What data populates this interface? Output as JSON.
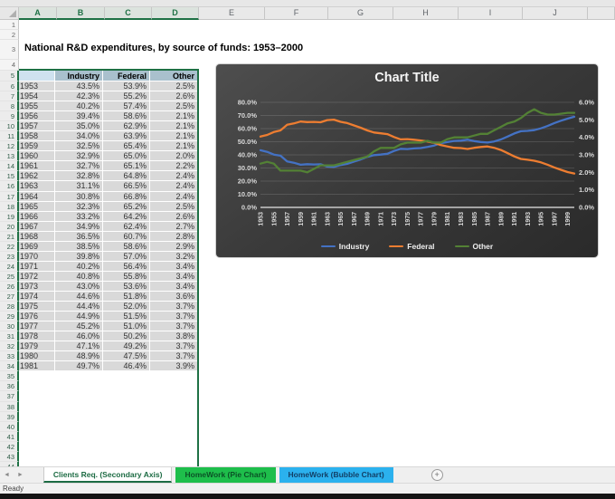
{
  "app": {
    "status": "Ready"
  },
  "icons": {
    "tab_nav_left": "◄",
    "tab_nav_right": "►",
    "add_sheet": "+",
    "select_all_corner": "triangle"
  },
  "colors": {
    "accent_green": "#1F7145",
    "table_header_bg": "#A9C0CD",
    "table_corner_bg": "#CFE2EF",
    "cell_bg": "#D9D9D9",
    "series_industry": "#4472C4",
    "series_federal": "#ED7D31",
    "series_other": "#538135"
  },
  "grid": {
    "columns": [
      {
        "label": "A",
        "width": 42,
        "selected": true
      },
      {
        "label": "B",
        "width": 53,
        "selected": true
      },
      {
        "label": "C",
        "width": 52,
        "selected": true
      },
      {
        "label": "D",
        "width": 52,
        "selected": true
      },
      {
        "label": "E",
        "width": 73
      },
      {
        "label": "F",
        "width": 70
      },
      {
        "label": "G",
        "width": 72
      },
      {
        "label": "H",
        "width": 72
      },
      {
        "label": "I",
        "width": 71
      },
      {
        "label": "J",
        "width": 72
      },
      {
        "label": "",
        "width": 30
      }
    ],
    "row_count": 44,
    "selected_from_row": 5
  },
  "sheet": {
    "title_cell": "National R&D expenditures, by source of funds: 1953–2000"
  },
  "table": {
    "headers": [
      "",
      "Industry",
      "Federal",
      "Other"
    ],
    "rows": [
      [
        "1953",
        "43.5%",
        "53.9%",
        "2.5%"
      ],
      [
        "1954",
        "42.3%",
        "55.2%",
        "2.6%"
      ],
      [
        "1955",
        "40.2%",
        "57.4%",
        "2.5%"
      ],
      [
        "1956",
        "39.4%",
        "58.6%",
        "2.1%"
      ],
      [
        "1957",
        "35.0%",
        "62.9%",
        "2.1%"
      ],
      [
        "1958",
        "34.0%",
        "63.9%",
        "2.1%"
      ],
      [
        "1959",
        "32.5%",
        "65.4%",
        "2.1%"
      ],
      [
        "1960",
        "32.9%",
        "65.0%",
        "2.0%"
      ],
      [
        "1961",
        "32.7%",
        "65.1%",
        "2.2%"
      ],
      [
        "1962",
        "32.8%",
        "64.8%",
        "2.4%"
      ],
      [
        "1963",
        "31.1%",
        "66.5%",
        "2.4%"
      ],
      [
        "1964",
        "30.8%",
        "66.8%",
        "2.4%"
      ],
      [
        "1965",
        "32.3%",
        "65.2%",
        "2.5%"
      ],
      [
        "1966",
        "33.2%",
        "64.2%",
        "2.6%"
      ],
      [
        "1967",
        "34.9%",
        "62.4%",
        "2.7%"
      ],
      [
        "1968",
        "36.5%",
        "60.7%",
        "2.8%"
      ],
      [
        "1969",
        "38.5%",
        "58.6%",
        "2.9%"
      ],
      [
        "1970",
        "39.8%",
        "57.0%",
        "3.2%"
      ],
      [
        "1971",
        "40.2%",
        "56.4%",
        "3.4%"
      ],
      [
        "1972",
        "40.8%",
        "55.8%",
        "3.4%"
      ],
      [
        "1973",
        "43.0%",
        "53.6%",
        "3.4%"
      ],
      [
        "1974",
        "44.6%",
        "51.8%",
        "3.6%"
      ],
      [
        "1975",
        "44.4%",
        "52.0%",
        "3.7%"
      ],
      [
        "1976",
        "44.9%",
        "51.5%",
        "3.7%"
      ],
      [
        "1977",
        "45.2%",
        "51.0%",
        "3.7%"
      ],
      [
        "1978",
        "46.0%",
        "50.2%",
        "3.8%"
      ],
      [
        "1979",
        "47.1%",
        "49.2%",
        "3.7%"
      ],
      [
        "1980",
        "48.9%",
        "47.5%",
        "3.7%"
      ],
      [
        "1981",
        "49.7%",
        "46.4%",
        "3.9%"
      ]
    ]
  },
  "chart_data": {
    "type": "line",
    "title": "Chart Title",
    "x_start_year": 1953,
    "x_end_year": 2000,
    "series": [
      {
        "name": "Industry",
        "axis": "primary",
        "color_key": "series_industry",
        "values": [
          43.5,
          42.3,
          40.2,
          39.4,
          35.0,
          34.0,
          32.5,
          32.9,
          32.7,
          32.8,
          31.1,
          30.8,
          32.3,
          33.2,
          34.9,
          36.5,
          38.5,
          39.8,
          40.2,
          40.8,
          43.0,
          44.6,
          44.4,
          44.9,
          45.2,
          46.0,
          47.1,
          48.9,
          49.7,
          50.6,
          50.8,
          51.5,
          50.5,
          49.8,
          49.4,
          50.2,
          51.7,
          53.9,
          56.3,
          58.0,
          58.3,
          58.8,
          60.2,
          62.0,
          64.2,
          66.0,
          67.6,
          69.0
        ]
      },
      {
        "name": "Federal",
        "axis": "primary",
        "color_key": "series_federal",
        "values": [
          53.9,
          55.2,
          57.4,
          58.6,
          62.9,
          63.9,
          65.4,
          65.0,
          65.1,
          64.8,
          66.5,
          66.8,
          65.2,
          64.2,
          62.4,
          60.7,
          58.6,
          57.0,
          56.4,
          55.8,
          53.6,
          51.8,
          52.0,
          51.5,
          51.0,
          50.2,
          49.2,
          47.5,
          46.4,
          45.4,
          45.2,
          44.5,
          45.4,
          46.0,
          46.4,
          45.4,
          43.7,
          41.3,
          38.8,
          36.9,
          36.3,
          35.5,
          34.3,
          32.5,
          30.4,
          28.6,
          26.9,
          25.8
        ]
      },
      {
        "name": "Other",
        "axis": "secondary",
        "color_key": "series_other",
        "values": [
          2.5,
          2.6,
          2.5,
          2.1,
          2.1,
          2.1,
          2.1,
          2.0,
          2.2,
          2.4,
          2.4,
          2.4,
          2.5,
          2.6,
          2.7,
          2.8,
          2.9,
          3.2,
          3.4,
          3.4,
          3.4,
          3.6,
          3.7,
          3.7,
          3.7,
          3.8,
          3.7,
          3.7,
          3.9,
          4.0,
          4.0,
          4.0,
          4.1,
          4.2,
          4.2,
          4.4,
          4.6,
          4.8,
          4.9,
          5.1,
          5.4,
          5.6,
          5.4,
          5.3,
          5.3,
          5.35,
          5.4,
          5.4
        ]
      }
    ],
    "primary_axis": {
      "min": 0,
      "max": 80,
      "tick_labels": [
        "80.0%",
        "70.0%",
        "60.0%",
        "50.0%",
        "40.0%",
        "30.0%",
        "20.0%",
        "10.0%",
        "0.0%"
      ]
    },
    "secondary_axis": {
      "min": 0,
      "max": 6,
      "tick_labels": [
        "6.0%",
        "5.0%",
        "4.0%",
        "3.0%",
        "2.0%",
        "1.0%",
        "0.0%"
      ]
    },
    "x_tick_labels": [
      "1953",
      "1955",
      "1957",
      "1959",
      "1961",
      "1963",
      "1965",
      "1967",
      "1969",
      "1971",
      "1973",
      "1975",
      "1977",
      "1979",
      "1981",
      "1983",
      "1985",
      "1987",
      "1989",
      "1991",
      "1993",
      "1995",
      "1997",
      "1999"
    ],
    "legend_position": "bottom",
    "grid": true
  },
  "tabs": {
    "items": [
      {
        "label": "Clients Req. (Secondary Axis)",
        "active": true,
        "bg": "#FFFFFF",
        "fg": "#1C6B43"
      },
      {
        "label": "HomeWork (Pie Chart)",
        "active": false,
        "bg": "#1EBE4B",
        "fg": "#0B5226"
      },
      {
        "label": "HomeWork (Bubble Chart)",
        "active": false,
        "bg": "#2BB1EE",
        "fg": "#123F66"
      }
    ]
  }
}
